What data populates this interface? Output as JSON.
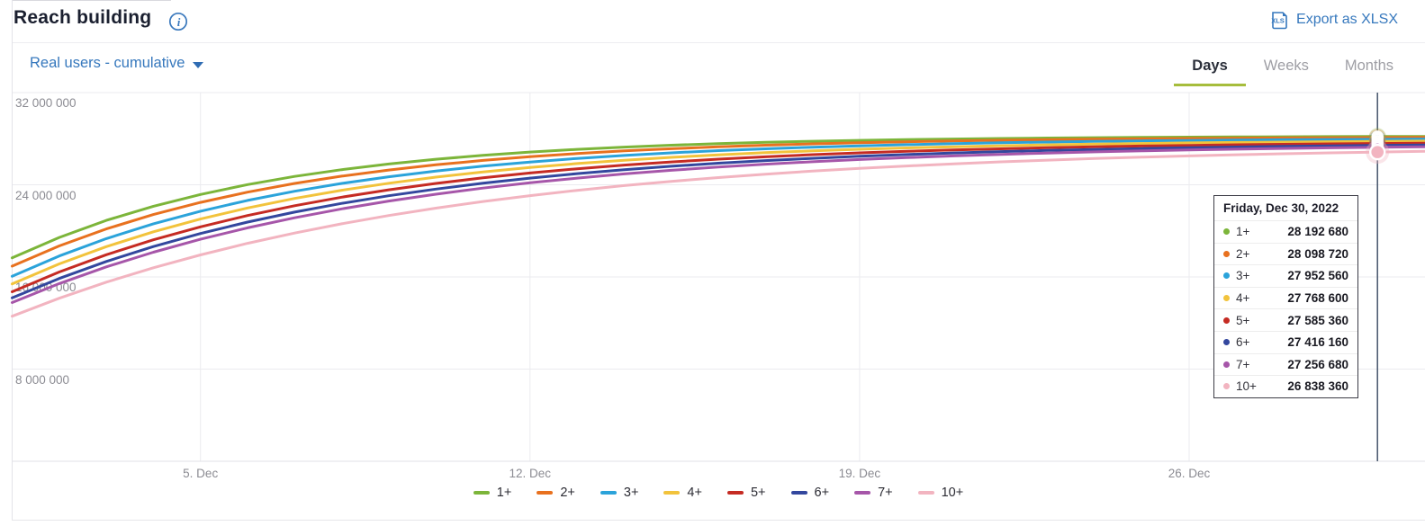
{
  "header": {
    "title": "Reach building",
    "export_label": "Export as XLSX"
  },
  "controls": {
    "metric_dropdown": {
      "value": "Real users - cumulative"
    },
    "tabs": [
      {
        "label": "Days",
        "active": true
      },
      {
        "label": "Weeks",
        "active": false
      },
      {
        "label": "Months",
        "active": false
      }
    ]
  },
  "colors": {
    "link_blue": "#3678bd",
    "title_text": "#1b2030",
    "accent_tab_underline": "#a6bd3c",
    "axis_label": "#8b8b92",
    "gridline": "#ebebef",
    "crosshair": "#44546a",
    "tooltip_border": "#3c3c46"
  },
  "chart_data": {
    "type": "line",
    "x_unit": "day",
    "days": 31,
    "x_range": [
      "Dec 1, 2022",
      "Dec 31, 2022"
    ],
    "ylim": [
      0,
      32000000
    ],
    "grid": true,
    "legend_position": "bottom-center",
    "x_ticks": [
      {
        "label": "5. Dec",
        "day": 4
      },
      {
        "label": "12. Dec",
        "day": 11
      },
      {
        "label": "19. Dec",
        "day": 18
      },
      {
        "label": "26. Dec",
        "day": 25
      }
    ],
    "y_ticks": [
      {
        "label": "32 000 000",
        "value": 32000000
      },
      {
        "label": "24 000 000",
        "value": 24000000
      },
      {
        "label": "16 000 000",
        "value": 16000000
      },
      {
        "label": "8 000 000",
        "value": 8000000
      }
    ],
    "hover_day": 29,
    "tooltip_title": "Friday, Dec 30, 2022",
    "series": [
      {
        "label": "1+",
        "color": "#7cb53a",
        "value_dec30": 28192680,
        "tooltip_value": "28 192 680",
        "start_fraction": 0.625,
        "tau": 5.45
      },
      {
        "label": "2+",
        "color": "#e8711f",
        "value_dec30": 28098720,
        "tooltip_value": "28 098 720",
        "start_fraction": 0.601,
        "tau": 5.9
      },
      {
        "label": "3+",
        "color": "#2ba3da",
        "value_dec30": 27952560,
        "tooltip_value": "27 952 560",
        "start_fraction": 0.572,
        "tau": 6.3
      },
      {
        "label": "4+",
        "color": "#f2c33c",
        "value_dec30": 27768600,
        "tooltip_value": "27 768 600",
        "start_fraction": 0.551,
        "tau": 6.7
      },
      {
        "label": "5+",
        "color": "#c52b23",
        "value_dec30": 27585360,
        "tooltip_value": "27 585 360",
        "start_fraction": 0.529,
        "tau": 7.1
      },
      {
        "label": "6+",
        "color": "#33479e",
        "value_dec30": 27416160,
        "tooltip_value": "27 416 160",
        "start_fraction": 0.512,
        "tau": 7.5
      },
      {
        "label": "7+",
        "color": "#a656a9",
        "value_dec30": 27256680,
        "tooltip_value": "27 256 680",
        "start_fraction": 0.499,
        "tau": 7.9
      },
      {
        "label": "10+",
        "color": "#f2b4c0",
        "value_dec30": 26838360,
        "tooltip_value": "26 838 360",
        "start_fraction": 0.459,
        "tau": 9.0
      }
    ]
  }
}
